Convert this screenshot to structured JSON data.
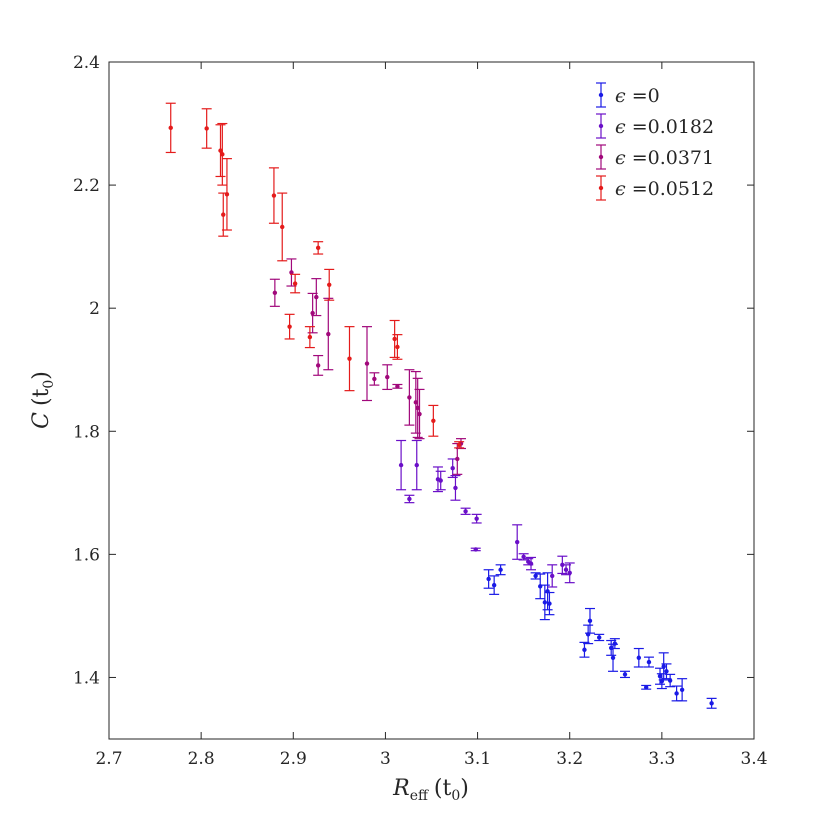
{
  "chart_data": {
    "type": "scatter",
    "title": "",
    "xlabel": "R_eff (t_0)",
    "ylabel": "C (t_0)",
    "xlabel_parts": {
      "main": "R",
      "sub": "eff",
      "arg": "(t",
      "arg_sub": "0",
      "arg_end": ")"
    },
    "ylabel_parts": {
      "main": "C",
      "arg": "(t",
      "arg_sub": "0",
      "arg_end": ")"
    },
    "xlim": [
      2.7,
      3.4
    ],
    "ylim": [
      1.3,
      2.4
    ],
    "xticks": [
      "2.7",
      "2.8",
      "2.9",
      "3",
      "3.1",
      "3.2",
      "3.3",
      "3.4"
    ],
    "yticks": [
      "1.4",
      "1.6",
      "1.8",
      "2",
      "2.2",
      "2.4"
    ],
    "grid": false,
    "legend_position": "top-right",
    "series": [
      {
        "name": "ϵ =0",
        "label_value": "0",
        "color": "#1a1ae6",
        "points": [
          {
            "x": 3.112,
            "y": 1.56,
            "err": 0.015
          },
          {
            "x": 3.118,
            "y": 1.55,
            "err": 0.015
          },
          {
            "x": 3.125,
            "y": 1.575,
            "err": 0.008
          },
          {
            "x": 3.163,
            "y": 1.565,
            "err": 0.005
          },
          {
            "x": 3.168,
            "y": 1.548,
            "err": 0.02
          },
          {
            "x": 3.173,
            "y": 1.522,
            "err": 0.028
          },
          {
            "x": 3.176,
            "y": 1.54,
            "err": 0.03
          },
          {
            "x": 3.178,
            "y": 1.52,
            "err": 0.018
          },
          {
            "x": 3.216,
            "y": 1.445,
            "err": 0.012
          },
          {
            "x": 3.22,
            "y": 1.47,
            "err": 0.015
          },
          {
            "x": 3.222,
            "y": 1.492,
            "err": 0.02
          },
          {
            "x": 3.232,
            "y": 1.465,
            "err": 0.005
          },
          {
            "x": 3.245,
            "y": 1.448,
            "err": 0.012
          },
          {
            "x": 3.247,
            "y": 1.432,
            "err": 0.022
          },
          {
            "x": 3.249,
            "y": 1.455,
            "err": 0.008
          },
          {
            "x": 3.26,
            "y": 1.405,
            "err": 0.005
          },
          {
            "x": 3.275,
            "y": 1.432,
            "err": 0.015
          },
          {
            "x": 3.283,
            "y": 1.384,
            "err": 0.003
          },
          {
            "x": 3.286,
            "y": 1.425,
            "err": 0.008
          },
          {
            "x": 3.298,
            "y": 1.402,
            "err": 0.013
          },
          {
            "x": 3.3,
            "y": 1.394,
            "err": 0.012
          },
          {
            "x": 3.302,
            "y": 1.418,
            "err": 0.022
          },
          {
            "x": 3.305,
            "y": 1.41,
            "err": 0.012
          },
          {
            "x": 3.309,
            "y": 1.395,
            "err": 0.01
          },
          {
            "x": 3.316,
            "y": 1.374,
            "err": 0.012
          },
          {
            "x": 3.322,
            "y": 1.38,
            "err": 0.018
          },
          {
            "x": 3.354,
            "y": 1.358,
            "err": 0.008
          }
        ]
      },
      {
        "name": "ϵ =0.0182",
        "label_value": "0.0182",
        "color": "#6a0fc8",
        "points": [
          {
            "x": 3.017,
            "y": 1.745,
            "err": 0.04
          },
          {
            "x": 3.026,
            "y": 1.69,
            "err": 0.006
          },
          {
            "x": 3.034,
            "y": 1.745,
            "err": 0.04
          },
          {
            "x": 3.057,
            "y": 1.722,
            "err": 0.02
          },
          {
            "x": 3.06,
            "y": 1.72,
            "err": 0.015
          },
          {
            "x": 3.073,
            "y": 1.74,
            "err": 0.015
          },
          {
            "x": 3.076,
            "y": 1.708,
            "err": 0.02
          },
          {
            "x": 3.087,
            "y": 1.67,
            "err": 0.005
          },
          {
            "x": 3.098,
            "y": 1.608,
            "err": 0.002
          },
          {
            "x": 3.099,
            "y": 1.658,
            "err": 0.007
          },
          {
            "x": 3.143,
            "y": 1.62,
            "err": 0.028
          },
          {
            "x": 3.15,
            "y": 1.596,
            "err": 0.005
          },
          {
            "x": 3.155,
            "y": 1.588,
            "err": 0.005
          },
          {
            "x": 3.158,
            "y": 1.585,
            "err": 0.01
          },
          {
            "x": 3.181,
            "y": 1.565,
            "err": 0.018
          },
          {
            "x": 3.192,
            "y": 1.583,
            "err": 0.014
          },
          {
            "x": 3.196,
            "y": 1.575,
            "err": 0.008
          },
          {
            "x": 3.2,
            "y": 1.57,
            "err": 0.016
          }
        ]
      },
      {
        "name": "ϵ =0.0371",
        "label_value": "0.0371",
        "color": "#a1087b",
        "points": [
          {
            "x": 2.88,
            "y": 2.025,
            "err": 0.022
          },
          {
            "x": 2.898,
            "y": 2.058,
            "err": 0.022
          },
          {
            "x": 2.921,
            "y": 1.992,
            "err": 0.032
          },
          {
            "x": 2.925,
            "y": 2.018,
            "err": 0.03
          },
          {
            "x": 2.927,
            "y": 1.907,
            "err": 0.016
          },
          {
            "x": 2.938,
            "y": 1.958,
            "err": 0.058
          },
          {
            "x": 2.98,
            "y": 1.91,
            "err": 0.06
          },
          {
            "x": 2.988,
            "y": 1.885,
            "err": 0.01
          },
          {
            "x": 3.002,
            "y": 1.888,
            "err": 0.02
          },
          {
            "x": 3.013,
            "y": 1.873,
            "err": 0.003
          },
          {
            "x": 3.026,
            "y": 1.855,
            "err": 0.045
          },
          {
            "x": 3.033,
            "y": 1.847,
            "err": 0.05
          },
          {
            "x": 3.035,
            "y": 1.838,
            "err": 0.048
          },
          {
            "x": 3.037,
            "y": 1.828,
            "err": 0.04
          },
          {
            "x": 3.078,
            "y": 1.755,
            "err": 0.025
          },
          {
            "x": 3.082,
            "y": 1.78,
            "err": 0.008
          }
        ]
      },
      {
        "name": "ϵ =0.0512",
        "label_value": "0.0512",
        "color": "#e41b1b",
        "points": [
          {
            "x": 2.767,
            "y": 2.293,
            "err": 0.04
          },
          {
            "x": 2.806,
            "y": 2.292,
            "err": 0.032
          },
          {
            "x": 2.821,
            "y": 2.256,
            "err": 0.042
          },
          {
            "x": 2.823,
            "y": 2.25,
            "err": 0.05
          },
          {
            "x": 2.824,
            "y": 2.152,
            "err": 0.035
          },
          {
            "x": 2.828,
            "y": 2.185,
            "err": 0.058
          },
          {
            "x": 2.879,
            "y": 2.183,
            "err": 0.045
          },
          {
            "x": 2.888,
            "y": 2.132,
            "err": 0.055
          },
          {
            "x": 2.896,
            "y": 1.97,
            "err": 0.02
          },
          {
            "x": 2.902,
            "y": 2.04,
            "err": 0.015
          },
          {
            "x": 2.918,
            "y": 1.953,
            "err": 0.017
          },
          {
            "x": 2.927,
            "y": 2.098,
            "err": 0.01
          },
          {
            "x": 2.939,
            "y": 2.038,
            "err": 0.025
          },
          {
            "x": 2.961,
            "y": 1.918,
            "err": 0.052
          },
          {
            "x": 3.01,
            "y": 1.95,
            "err": 0.03
          },
          {
            "x": 3.013,
            "y": 1.937,
            "err": 0.02
          },
          {
            "x": 3.052,
            "y": 1.817,
            "err": 0.025
          },
          {
            "x": 3.08,
            "y": 1.778,
            "err": 0.005
          }
        ]
      }
    ]
  }
}
